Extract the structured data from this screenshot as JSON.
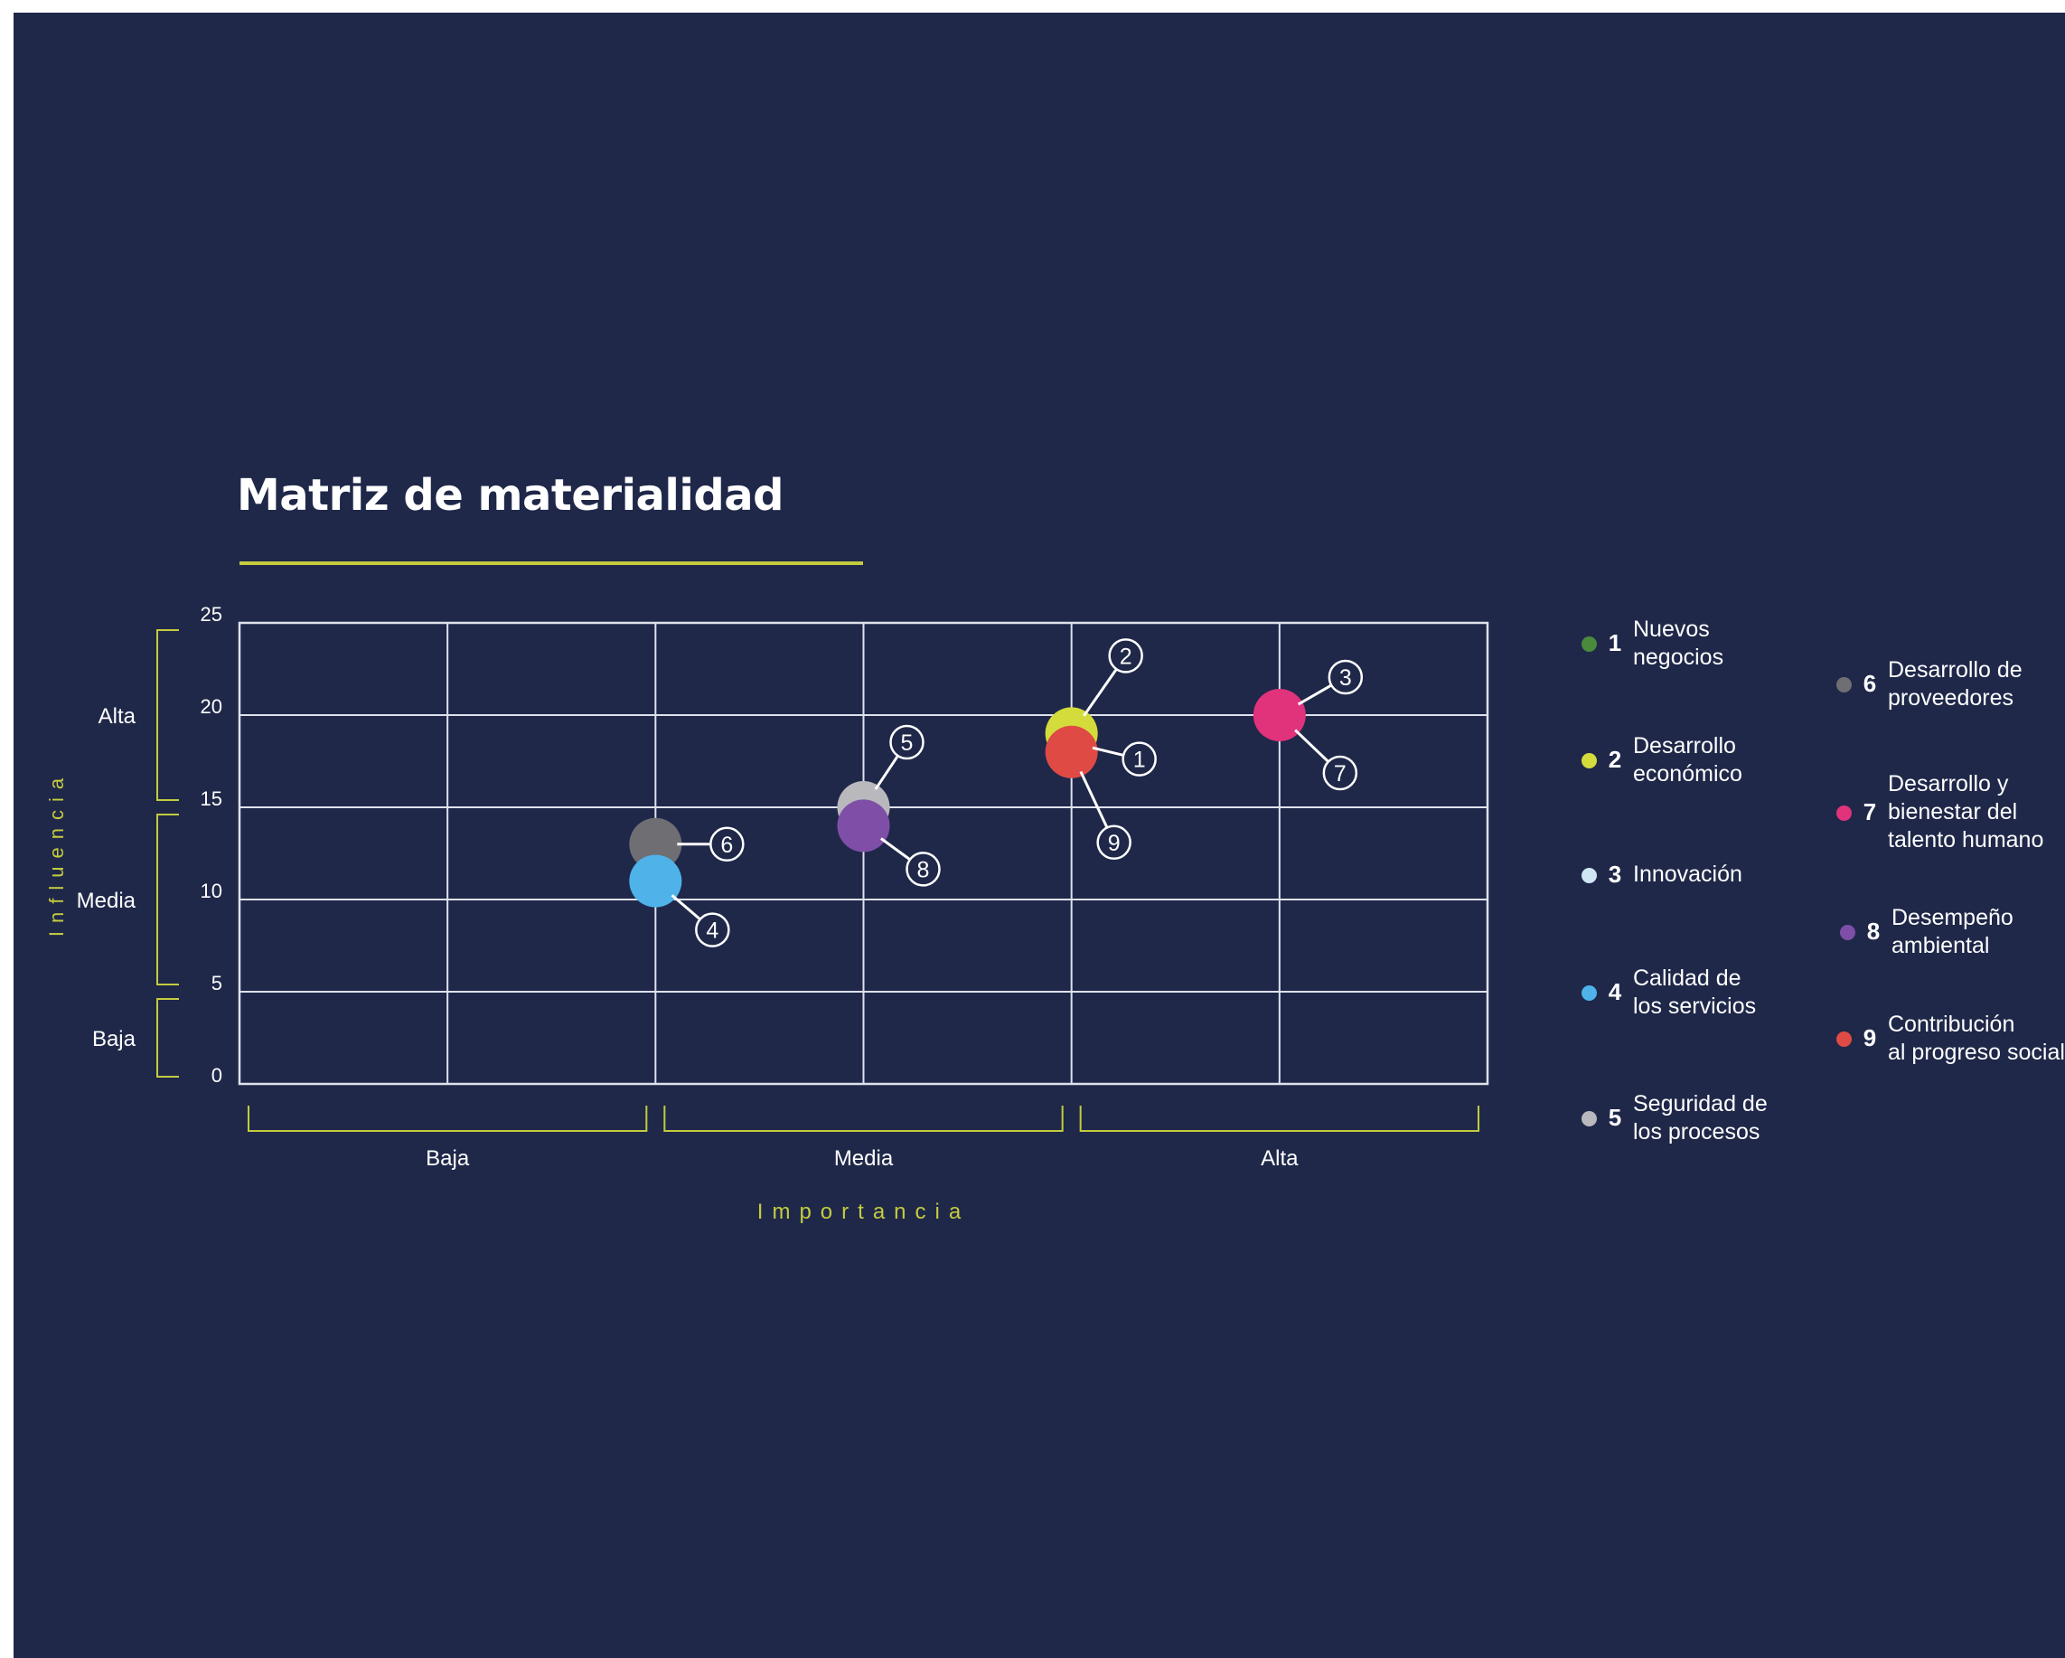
{
  "title": "Matriz de materialidad",
  "colors": {
    "background": "#1f2849",
    "accent": "#c4cc3e",
    "grid": "#dfe2ec",
    "text": "#ffffff"
  },
  "chart_data": {
    "type": "scatter",
    "title": "Matriz de materialidad",
    "xlabel": "Importancia",
    "ylabel": "Influencia",
    "xlim": [
      0,
      30
    ],
    "ylim": [
      0,
      25
    ],
    "x_grid": [
      5,
      10,
      15,
      20,
      25
    ],
    "y_ticks": [
      0,
      5,
      10,
      15,
      20,
      25
    ],
    "grid": true,
    "legend_position": "right",
    "x_bands": [
      {
        "label": "Baja",
        "from": 0,
        "to": 10
      },
      {
        "label": "Media",
        "from": 10,
        "to": 20
      },
      {
        "label": "Alta",
        "from": 20,
        "to": 30
      }
    ],
    "y_bands": [
      {
        "label": "Alta",
        "from": 15,
        "to": 25
      },
      {
        "label": "Media",
        "from": 5,
        "to": 15
      },
      {
        "label": "Baja",
        "from": 0,
        "to": 5
      }
    ],
    "points": [
      {
        "id": 1,
        "name": "Nuevos negocios",
        "x": 20,
        "y": 18.5,
        "color": "#4a8a3c",
        "visible": false
      },
      {
        "id": 2,
        "name": "Desarrollo económico",
        "x": 20,
        "y": 19,
        "color": "#d4dc3c"
      },
      {
        "id": 3,
        "name": "Innovación",
        "x": 25,
        "y": 20,
        "color": "#cfe6f5",
        "visible": false
      },
      {
        "id": 4,
        "name": "Calidad de los servicios",
        "x": 10,
        "y": 11,
        "color": "#4fb3ea"
      },
      {
        "id": 5,
        "name": "Seguridad de los procesos",
        "x": 15,
        "y": 15,
        "color": "#b9b9bd"
      },
      {
        "id": 6,
        "name": "Desarrollo de proveedores",
        "x": 10,
        "y": 13,
        "color": "#6f6f73"
      },
      {
        "id": 7,
        "name": "Desarrollo y bienestar del talento humano",
        "x": 25,
        "y": 20,
        "color": "#e0337c"
      },
      {
        "id": 8,
        "name": "Desempeño ambiental",
        "x": 15,
        "y": 14,
        "color": "#7f4fa8"
      },
      {
        "id": 9,
        "name": "Contribución al progreso social",
        "x": 20,
        "y": 18,
        "color": "#e04a45"
      }
    ]
  },
  "legend": [
    {
      "num": "1",
      "label": "Nuevos\nnegocios",
      "color": "#4a8a3c"
    },
    {
      "num": "2",
      "label": "Desarrollo\neconómico",
      "color": "#d4dc3c"
    },
    {
      "num": "3",
      "label": "Innovación",
      "color": "#cfe6f5"
    },
    {
      "num": "4",
      "label": "Calidad de\nlos servicios",
      "color": "#4fb3ea"
    },
    {
      "num": "5",
      "label": "Seguridad de\nlos procesos",
      "color": "#b9b9bd"
    },
    {
      "num": "6",
      "label": "Desarrollo de\nproveedores",
      "color": "#6f6f73"
    },
    {
      "num": "7",
      "label": "Desarrollo y\nbienestar del\ntalento humano",
      "color": "#e0337c"
    },
    {
      "num": "8",
      "label": "Desempeño\nambiental",
      "color": "#7f4fa8"
    },
    {
      "num": "9",
      "label": "Contribución\nal progreso social",
      "color": "#e04a45"
    }
  ]
}
